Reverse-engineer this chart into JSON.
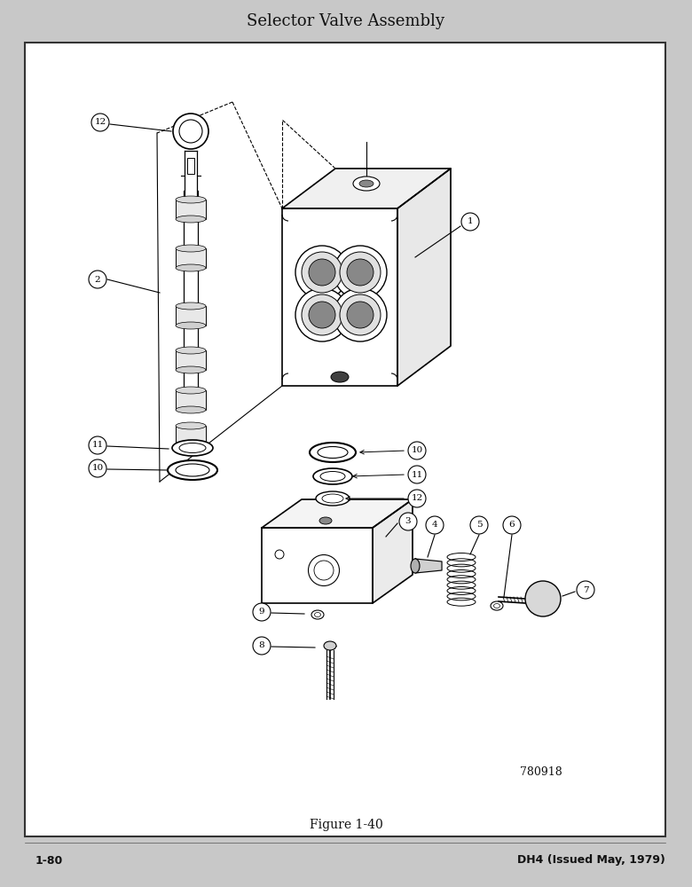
{
  "title": "Selector Valve Assembly",
  "figure_label": "Figure 1-40",
  "page_left": "1-80",
  "page_right": "DH4 (Issued May, 1979)",
  "figure_number": "780918",
  "bg_color": "#ffffff",
  "border_color": "#222222",
  "text_color": "#111111",
  "title_fontsize": 13,
  "label_fontsize": 8.5,
  "footer_fontsize": 9,
  "outer_bg": "#c8c8c8"
}
